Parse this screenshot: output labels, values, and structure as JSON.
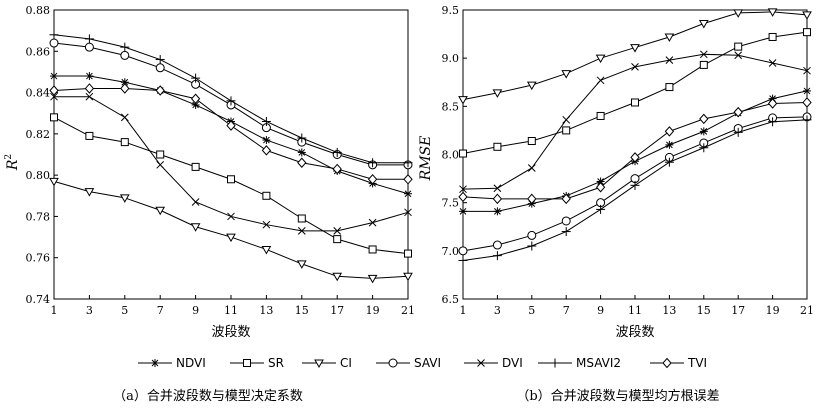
{
  "chart_data": [
    {
      "type": "line",
      "caption": "（a）合并波段数与模型决定系数",
      "ylabel": "R",
      "ylabel_sup": "2",
      "xlabel": "波段数",
      "x": [
        1,
        3,
        5,
        7,
        9,
        11,
        13,
        15,
        17,
        19,
        21
      ],
      "xlim": [
        1,
        21
      ],
      "ylim": [
        0.74,
        0.88
      ],
      "yticks": [
        "0.74",
        "0.76",
        "0.78",
        "0.80",
        "0.82",
        "0.84",
        "0.86",
        "0.88"
      ],
      "ytick_values": [
        0.74,
        0.76,
        0.78,
        0.8,
        0.82,
        0.84,
        0.86,
        0.88
      ],
      "series": [
        {
          "name": "NDVI",
          "values": [
            0.848,
            0.848,
            0.845,
            0.841,
            0.834,
            0.826,
            0.817,
            0.811,
            0.802,
            0.796,
            0.791
          ]
        },
        {
          "name": "SR",
          "values": [
            0.828,
            0.819,
            0.816,
            0.81,
            0.804,
            0.798,
            0.79,
            0.779,
            0.769,
            0.764,
            0.762
          ]
        },
        {
          "name": "CI",
          "values": [
            0.797,
            0.792,
            0.789,
            0.783,
            0.775,
            0.77,
            0.764,
            0.757,
            0.751,
            0.75,
            0.751
          ]
        },
        {
          "name": "SAVI",
          "values": [
            0.864,
            0.862,
            0.858,
            0.852,
            0.844,
            0.834,
            0.823,
            0.816,
            0.81,
            0.805,
            0.805
          ]
        },
        {
          "name": "DVI",
          "values": [
            0.838,
            0.838,
            0.828,
            0.805,
            0.787,
            0.78,
            0.776,
            0.773,
            0.773,
            0.777,
            0.782
          ]
        },
        {
          "name": "MSAVI2",
          "values": [
            0.868,
            0.866,
            0.862,
            0.856,
            0.847,
            0.836,
            0.826,
            0.818,
            0.811,
            0.806,
            0.806
          ]
        },
        {
          "name": "TVI",
          "values": [
            0.841,
            0.842,
            0.842,
            0.841,
            0.837,
            0.824,
            0.812,
            0.806,
            0.803,
            0.798,
            0.798
          ]
        }
      ]
    },
    {
      "type": "line",
      "caption": "（b）合并波段数与模型均方根误差",
      "ylabel": "RMSE",
      "xlabel": "波段数",
      "x": [
        1,
        3,
        5,
        7,
        9,
        11,
        13,
        15,
        17,
        19,
        21
      ],
      "xlim": [
        1,
        21
      ],
      "ylim": [
        6.5,
        9.5
      ],
      "yticks": [
        "6.5",
        "7.0",
        "7.5",
        "8.0",
        "8.5",
        "9.0",
        "9.5"
      ],
      "ytick_values": [
        6.5,
        7.0,
        7.5,
        8.0,
        8.5,
        9.0,
        9.5
      ],
      "series": [
        {
          "name": "NDVI",
          "values": [
            7.41,
            7.41,
            7.49,
            7.57,
            7.72,
            7.93,
            8.1,
            8.24,
            8.43,
            8.58,
            8.66
          ]
        },
        {
          "name": "SR",
          "values": [
            8.01,
            8.08,
            8.14,
            8.25,
            8.4,
            8.54,
            8.7,
            8.93,
            9.12,
            9.22,
            9.27
          ]
        },
        {
          "name": "CI",
          "values": [
            8.57,
            8.64,
            8.72,
            8.84,
            9.0,
            9.11,
            9.22,
            9.36,
            9.47,
            9.48,
            9.45
          ]
        },
        {
          "name": "SAVI",
          "values": [
            7.0,
            7.06,
            7.16,
            7.31,
            7.5,
            7.75,
            7.97,
            8.12,
            8.27,
            8.38,
            8.39
          ]
        },
        {
          "name": "DVI",
          "values": [
            7.64,
            7.65,
            7.86,
            8.36,
            8.77,
            8.91,
            8.98,
            9.04,
            9.03,
            8.95,
            8.87
          ]
        },
        {
          "name": "MSAVI2",
          "values": [
            6.9,
            6.95,
            7.05,
            7.2,
            7.43,
            7.68,
            7.92,
            8.07,
            8.23,
            8.34,
            8.36
          ]
        },
        {
          "name": "TVI",
          "values": [
            7.56,
            7.54,
            7.54,
            7.54,
            7.66,
            7.97,
            8.24,
            8.37,
            8.44,
            8.53,
            8.54
          ]
        }
      ]
    }
  ],
  "legend": {
    "placement": "bottom",
    "entries": [
      {
        "name": "NDVI",
        "marker": "asterisk"
      },
      {
        "name": "SR",
        "marker": "square"
      },
      {
        "name": "CI",
        "marker": "triangle-down"
      },
      {
        "name": "SAVI",
        "marker": "circle"
      },
      {
        "name": "DVI",
        "marker": "x"
      },
      {
        "name": "MSAVI2",
        "marker": "plus"
      },
      {
        "name": "TVI",
        "marker": "diamond"
      }
    ]
  },
  "colors": {
    "line": "#000000",
    "background": "#ffffff"
  }
}
